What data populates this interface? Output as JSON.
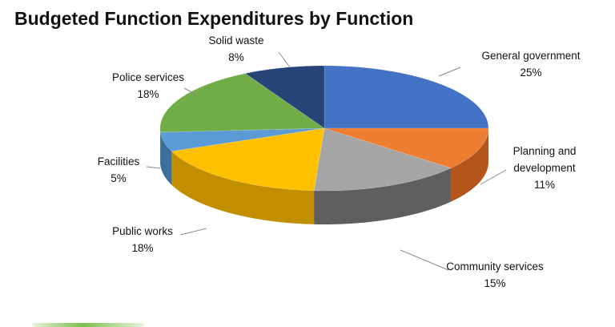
{
  "chart_data": {
    "type": "pie",
    "title": "Budgeted Function Expenditures by Function",
    "slices": [
      {
        "label": "General government",
        "value": 25,
        "value_label": "25%",
        "color": "#4472c4",
        "side_color": "#2f5597"
      },
      {
        "label": "Planning and development",
        "value": 11,
        "value_label": "11%",
        "color": "#ed7d31",
        "side_color": "#b4561c"
      },
      {
        "label": "Community services",
        "value": 15,
        "value_label": "15%",
        "color": "#a5a5a5",
        "side_color": "#5f5f5f"
      },
      {
        "label": "Public works",
        "value": 18,
        "value_label": "18%",
        "color": "#ffc000",
        "side_color": "#c28f00"
      },
      {
        "label": "Facilities",
        "value": 5,
        "value_label": "5%",
        "color": "#5b9bd5",
        "side_color": "#3d6f9e"
      },
      {
        "label": "Police services",
        "value": 18,
        "value_label": "18%",
        "color": "#70ad47",
        "side_color": "#4f7d31"
      },
      {
        "label": "Solid waste",
        "value": 8,
        "value_label": "8%",
        "color": "#264478",
        "side_color": "#172b4d"
      }
    ],
    "style": "3d-pie",
    "start": "top, clockwise",
    "legend": "none; data labels with leader lines"
  }
}
